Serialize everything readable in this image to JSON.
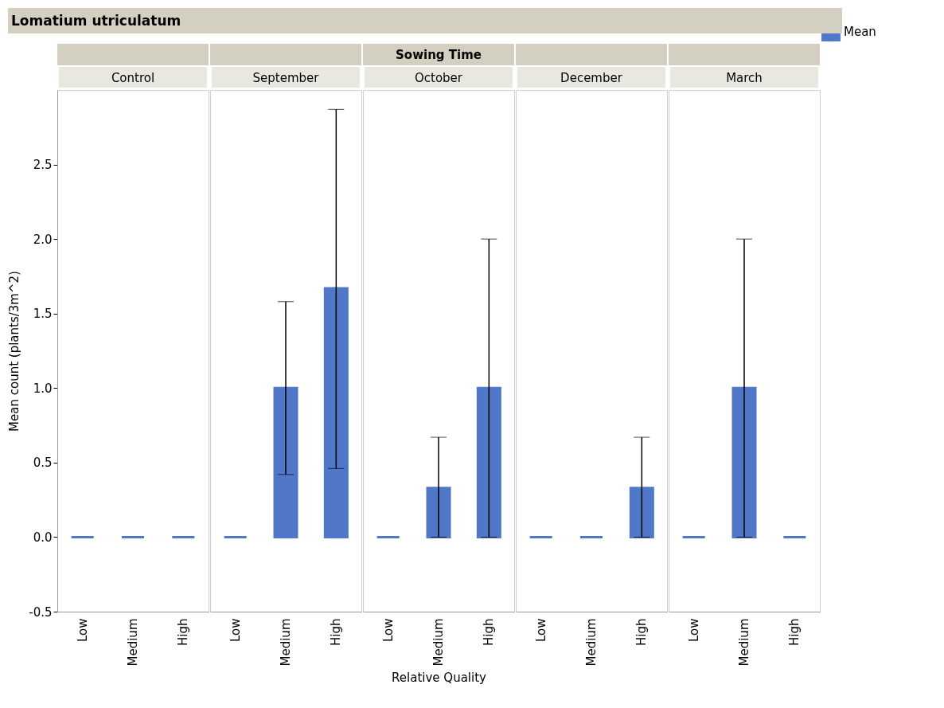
{
  "chart_data": [
    {
      "type": "bar",
      "title": "Control",
      "ylabel": "Mean count (plants/3m^2)",
      "annotations": [
        "Lomatium utriculatum"
      ],
      "categories": [
        "Low",
        "Medium",
        "High"
      ],
      "ylim": [
        -0.5,
        3.0
      ],
      "yticks": [
        -0.5,
        {
          "value": 0,
          "label": "0.0"
        },
        0.5,
        {
          "value": 1,
          "label": "1.0"
        },
        1.5,
        {
          "value": 2,
          "label": "2.0"
        },
        2.5
      ],
      "series": [
        {
          "name": "Mean",
          "color": "#5077c8",
          "values": [
            0,
            0,
            0
          ],
          "errors": [
            null,
            null,
            null
          ]
        }
      ]
    },
    {
      "type": "bar",
      "title": "September",
      "categories": [
        "Low",
        "Medium",
        "High"
      ],
      "ylim": [
        -0.5,
        3.0
      ],
      "yticks": [
        -0.5,
        0.0,
        0.5,
        1.0,
        1.5,
        2.0,
        2.5
      ],
      "tick_labels": "x",
      "series": [
        {
          "name": "Mean",
          "color": "#5077c8",
          "values": [
            0,
            1.0,
            1.67
          ],
          "errors": [
            null,
            [
              0.42,
              1.58
            ],
            [
              0.46,
              2.87
            ]
          ]
        }
      ]
    },
    {
      "type": "bar",
      "title": "October",
      "xlabel": "Relative Quality",
      "annotations": [
        "Sowing Time"
      ],
      "categories": [
        "Low",
        "Medium",
        "High"
      ],
      "ylim": [
        -0.5,
        3.0
      ],
      "yticks": [
        -0.5,
        0.0,
        0.5,
        1.0,
        1.5,
        2.0,
        2.5
      ],
      "tick_labels": "x",
      "series": [
        {
          "name": "Mean",
          "color": "#5077c8",
          "values": [
            0,
            0.33,
            1.0
          ],
          "errors": [
            null,
            [
              0,
              0.67
            ],
            [
              0,
              2.0
            ]
          ]
        }
      ]
    },
    {
      "type": "bar",
      "title": "December",
      "categories": [
        "Low",
        "Medium",
        "High"
      ],
      "ylim": [
        -0.5,
        3.0
      ],
      "yticks": [
        -0.5,
        0.0,
        0.5,
        1.0,
        1.5,
        2.0,
        2.5
      ],
      "tick_labels": "x",
      "series": [
        {
          "name": "Mean",
          "color": "#5077c8",
          "values": [
            0,
            0,
            0.33
          ],
          "errors": [
            null,
            null,
            [
              0,
              0.67
            ]
          ]
        }
      ]
    },
    {
      "type": "bar",
      "title": "March",
      "legend": "top right",
      "categories": [
        "Low",
        "Medium",
        "High"
      ],
      "ylim": [
        -0.5,
        3.0
      ],
      "yticks": [
        -0.5,
        0.0,
        0.5,
        1.0,
        1.5,
        2.0,
        2.5
      ],
      "tick_labels": "x",
      "series": [
        {
          "name": "Mean",
          "color": "#5077c8",
          "values": [
            0,
            1.0,
            0
          ],
          "errors": [
            null,
            [
              0,
              2.0
            ],
            null
          ]
        }
      ]
    }
  ]
}
